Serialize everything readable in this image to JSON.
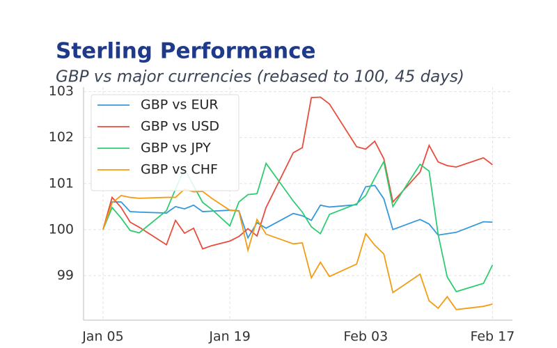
{
  "chart_data": {
    "type": "line",
    "title": "Sterling Performance",
    "subtitle": "GBP vs major currencies (rebased to 100, 45 days)",
    "x": [
      0,
      1,
      2,
      3,
      4,
      7,
      8,
      9,
      10,
      11,
      12,
      14,
      15,
      16,
      17,
      18,
      21,
      22,
      23,
      24,
      25,
      28,
      29,
      30,
      31,
      32,
      35,
      36,
      37,
      38,
      39,
      42,
      43
    ],
    "xlim": [
      -2.15,
      45.2
    ],
    "xticks": [
      {
        "value": 0,
        "label": "Jan 05"
      },
      {
        "value": 14,
        "label": "Jan 19"
      },
      {
        "value": 29,
        "label": "Feb 03"
      },
      {
        "value": 43,
        "label": "Feb 17"
      }
    ],
    "ylim": [
      98.03,
      103.1
    ],
    "yticks": [
      99,
      100,
      101,
      102,
      103
    ],
    "grid": true,
    "legend": "upper-left",
    "series": [
      {
        "name": "GBP vs EUR",
        "color": "#3498db",
        "values": [
          100,
          100.6,
          100.6,
          100.39,
          100.38,
          100.36,
          100.5,
          100.45,
          100.53,
          100.39,
          100.4,
          100.42,
          100.41,
          99.82,
          100.15,
          100.03,
          100.35,
          100.3,
          100.2,
          100.53,
          100.49,
          100.54,
          100.93,
          100.96,
          100.67,
          100.0,
          100.22,
          100.12,
          99.88,
          99.91,
          99.94,
          100.17,
          100.16
        ]
      },
      {
        "name": "GBP vs USD",
        "color": "#e74c3c",
        "values": [
          100,
          100.7,
          100.48,
          100.16,
          100.05,
          99.67,
          100.2,
          99.92,
          100.03,
          99.58,
          99.65,
          99.75,
          99.85,
          100.02,
          99.86,
          100.48,
          101.67,
          101.78,
          102.87,
          102.88,
          102.73,
          101.8,
          101.75,
          101.92,
          101.54,
          100.6,
          101.25,
          101.83,
          101.47,
          101.39,
          101.36,
          101.56,
          101.41
        ]
      },
      {
        "name": "GBP vs JPY",
        "color": "#2ecc71",
        "values": [
          100,
          100.48,
          100.25,
          99.98,
          99.93,
          100.41,
          100.88,
          101.32,
          100.95,
          100.59,
          100.44,
          100.08,
          100.6,
          100.76,
          100.78,
          101.44,
          100.62,
          100.38,
          100.06,
          99.91,
          100.33,
          100.56,
          100.74,
          101.12,
          101.48,
          100.5,
          101.42,
          101.27,
          99.89,
          98.97,
          98.65,
          98.83,
          99.23
        ]
      },
      {
        "name": "GBP vs CHF",
        "color": "#f39c12",
        "values": [
          100,
          100.58,
          100.74,
          100.7,
          100.68,
          100.7,
          100.7,
          100.88,
          100.82,
          100.83,
          100.68,
          100.42,
          100.4,
          99.55,
          100.22,
          99.9,
          99.69,
          99.71,
          98.95,
          99.29,
          98.98,
          99.25,
          99.91,
          99.66,
          99.47,
          98.63,
          99.03,
          98.45,
          98.29,
          98.54,
          98.26,
          98.33,
          98.38
        ]
      }
    ]
  }
}
